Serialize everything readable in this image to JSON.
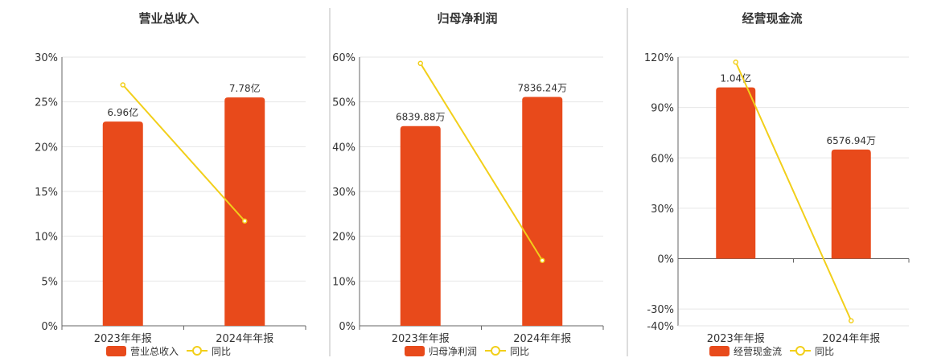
{
  "colors": {
    "bar": "#E84A1B",
    "line": "#F2CF1A",
    "grid": "#e6e6e6",
    "axis": "#666666",
    "divider": "#bbbbbb"
  },
  "legend_line_label": "同比",
  "chart_data": [
    {
      "type": "bar",
      "title": "营业总收入",
      "categories": [
        "2023年年报",
        "2024年年报"
      ],
      "ylim": [
        0,
        30
      ],
      "yticks": [
        0,
        5,
        10,
        15,
        20,
        25,
        30
      ],
      "ytick_labels": [
        "0%",
        "5%",
        "10%",
        "15%",
        "20%",
        "25%",
        "30%"
      ],
      "bar_series_name": "营业总收入",
      "bar_values": [
        22.8,
        25.5
      ],
      "bar_labels": [
        "6.96亿",
        "7.78亿"
      ],
      "line_values": [
        26.9,
        11.7
      ],
      "legend_position": "bottom"
    },
    {
      "type": "bar",
      "title": "归母净利润",
      "categories": [
        "2023年年报",
        "2024年年报"
      ],
      "ylim": [
        0,
        60
      ],
      "yticks": [
        0,
        10,
        20,
        30,
        40,
        50,
        60
      ],
      "ytick_labels": [
        "0%",
        "10%",
        "20%",
        "30%",
        "40%",
        "50%",
        "60%"
      ],
      "bar_series_name": "归母净利润",
      "bar_values": [
        44.6,
        51.1
      ],
      "bar_labels": [
        "6839.88万",
        "7836.24万"
      ],
      "line_values": [
        58.6,
        14.6
      ],
      "legend_position": "bottom"
    },
    {
      "type": "bar",
      "title": "经营现金流",
      "categories": [
        "2023年年报",
        "2024年年报"
      ],
      "ylim": [
        -40,
        120
      ],
      "yticks": [
        -40,
        -30,
        0,
        30,
        60,
        90,
        120
      ],
      "ytick_labels": [
        "-40%",
        "-30%",
        "0%",
        "30%",
        "60%",
        "90%",
        "120%"
      ],
      "bar_series_name": "经营现金流",
      "bar_values": [
        102,
        65
      ],
      "bar_labels": [
        "1.04亿",
        "6576.94万"
      ],
      "line_values": [
        117,
        -37
      ],
      "legend_position": "bottom"
    }
  ]
}
